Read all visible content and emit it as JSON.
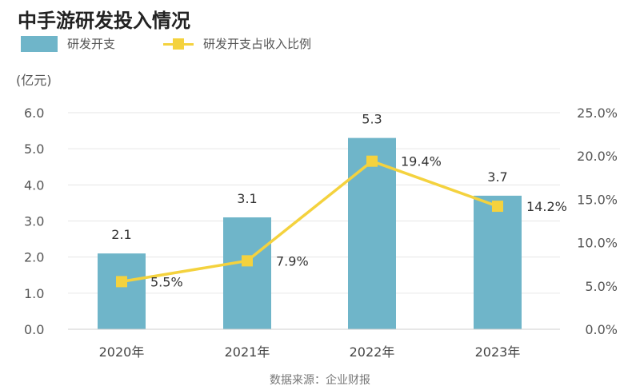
{
  "chart_data": {
    "type": "bar+line",
    "title": "中手游研发投入情况",
    "categories": [
      "2020年",
      "2021年",
      "2022年",
      "2023年"
    ],
    "series": [
      {
        "name": "研发开支",
        "type": "bar",
        "axis": "left",
        "values": [
          2.1,
          3.1,
          5.3,
          3.7
        ],
        "labels": [
          "2.1",
          "3.1",
          "5.3",
          "3.7"
        ],
        "color": "#6fb5c9"
      },
      {
        "name": "研发开支占收入比例",
        "type": "line",
        "axis": "right",
        "values": [
          5.5,
          7.9,
          19.4,
          14.2
        ],
        "labels": [
          "5.5%",
          "7.9%",
          "19.4%",
          "14.2%"
        ],
        "color": "#f4d23e"
      }
    ],
    "ylabel": "(亿元)",
    "ylim": [
      0,
      6
    ],
    "yticks": [
      "0.0",
      "1.0",
      "2.0",
      "3.0",
      "4.0",
      "5.0",
      "6.0"
    ],
    "y2lim": [
      0,
      25
    ],
    "y2ticks": [
      "0.0%",
      "5.0%",
      "10.0%",
      "15.0%",
      "20.0%",
      "25.0%"
    ],
    "grid": true,
    "legend": "top-left"
  },
  "source": "数据来源：企业财报"
}
